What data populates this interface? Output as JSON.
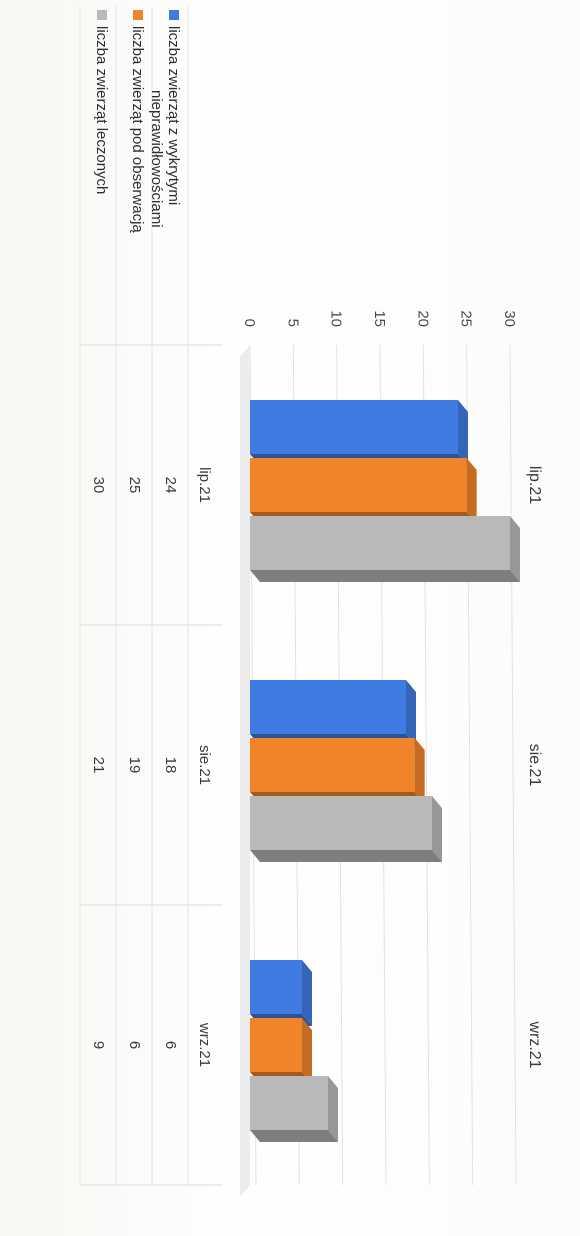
{
  "chart_data": {
    "type": "bar",
    "title": "",
    "xlabel": "",
    "ylabel": "",
    "ylim": [
      0,
      30
    ],
    "yticks": [
      0,
      5,
      10,
      15,
      20,
      25,
      30
    ],
    "categories": [
      "lip.21",
      "sie.21",
      "wrz.21"
    ],
    "series": [
      {
        "name": "liczba zwierząt z wykrytymi nieprawidłowościami",
        "values": [
          24,
          18,
          6
        ],
        "color": "#3f7be0"
      },
      {
        "name": "liczba zwierząt pod obserwacją",
        "values": [
          25,
          19,
          6
        ],
        "color": "#f0842a"
      },
      {
        "name": "liczba zwierząt leczonych",
        "values": [
          30,
          21,
          9
        ],
        "color": "#b9b9b9"
      }
    ],
    "legend_lines": [
      [
        "liczba zwierząt z wykrytymi",
        "nieprawidłowościami"
      ],
      [
        "liczba zwierząt pod obserwacją"
      ],
      [
        "liczba zwierząt leczonych"
      ]
    ],
    "grid": true,
    "legend": "data-table",
    "style": "3d-column with data table"
  }
}
